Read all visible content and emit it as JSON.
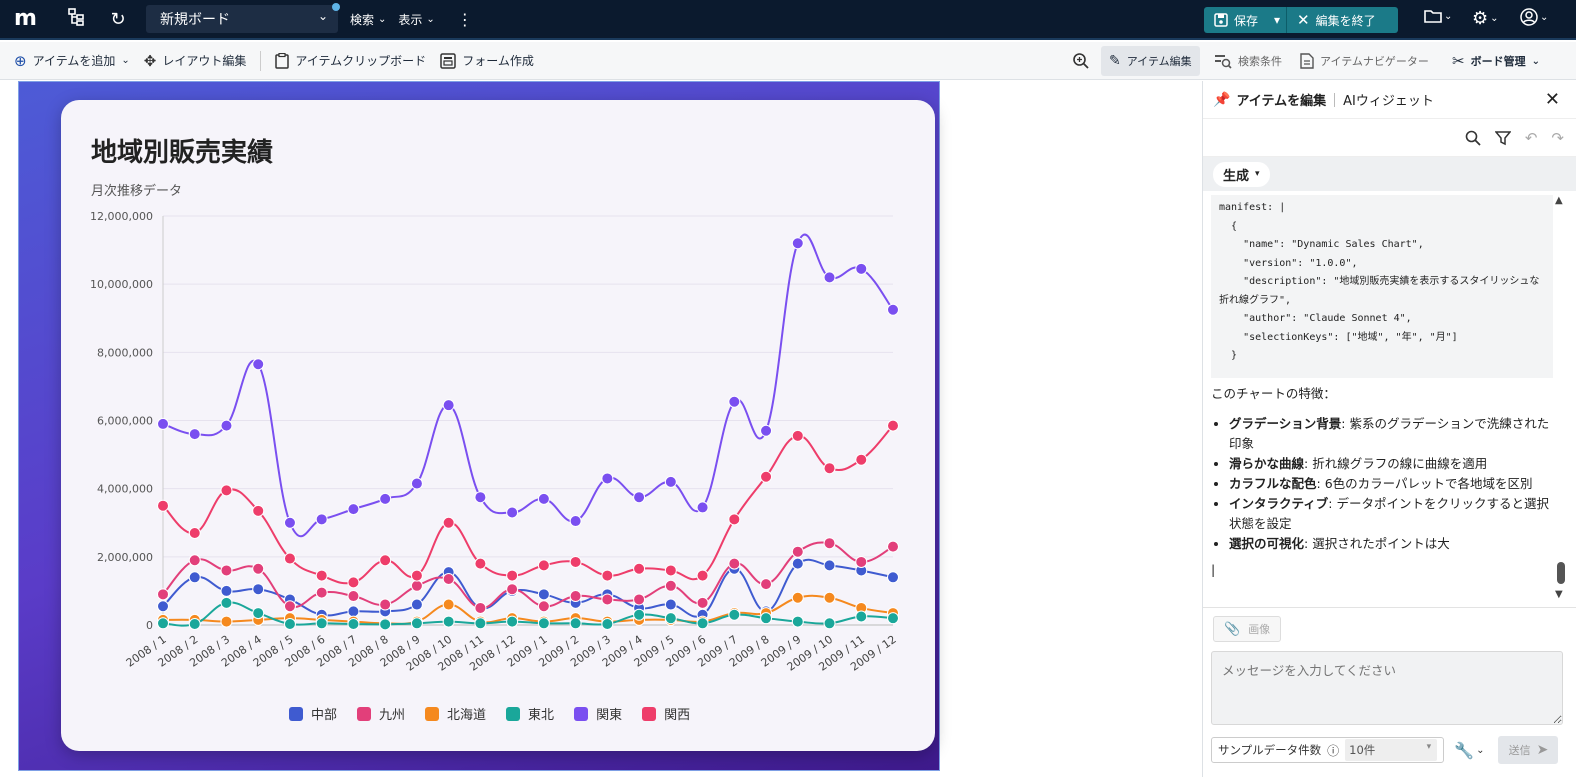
{
  "topbar": {
    "logo": "m",
    "board_name": "新規ボード",
    "menu_search": "検索",
    "menu_view": "表示",
    "save_label": "保存",
    "end_edit_label": "編集を終了"
  },
  "toolbar": {
    "add_item": "アイテムを追加",
    "layout_edit": "レイアウト編集",
    "item_clipboard": "アイテムクリップボード",
    "form_create": "フォーム作成",
    "item_edit": "アイテム編集",
    "search_conditions": "検索条件",
    "item_navigator": "アイテムナビゲーター",
    "board_manage": "ボード管理"
  },
  "card": {
    "title": "地域別販売実績",
    "subtitle": "月次推移データ"
  },
  "chart_data": {
    "type": "line",
    "title": "地域別販売実績",
    "subtitle": "月次推移データ",
    "xlabel": "",
    "ylabel": "",
    "ylim": [
      0,
      12000000
    ],
    "yticks": [
      "0",
      "2,000,000",
      "4,000,000",
      "6,000,000",
      "8,000,000",
      "10,000,000",
      "12,000,000"
    ],
    "grid": true,
    "legend_position": "bottom",
    "categories": [
      "2008 / 1",
      "2008 / 2",
      "2008 / 3",
      "2008 / 4",
      "2008 / 5",
      "2008 / 6",
      "2008 / 7",
      "2008 / 8",
      "2008 / 9",
      "2008 / 10",
      "2008 / 11",
      "2008 / 12",
      "2009 / 1",
      "2009 / 2",
      "2009 / 3",
      "2009 / 4",
      "2009 / 5",
      "2009 / 6",
      "2009 / 7",
      "2009 / 8",
      "2009 / 9",
      "2009 / 10",
      "2009 / 11",
      "2009 / 12"
    ],
    "series": [
      {
        "name": "中部",
        "color": "#3f5bd0",
        "values": [
          550000,
          1400000,
          1000000,
          1050000,
          750000,
          300000,
          400000,
          400000,
          600000,
          1550000,
          500000,
          1000000,
          900000,
          650000,
          900000,
          500000,
          600000,
          300000,
          1650000,
          400000,
          1800000,
          1750000,
          1600000,
          1400000
        ]
      },
      {
        "name": "九州",
        "color": "#e23f7a",
        "values": [
          900000,
          1900000,
          1600000,
          1650000,
          550000,
          950000,
          850000,
          600000,
          1150000,
          1350000,
          500000,
          1050000,
          550000,
          850000,
          750000,
          750000,
          1150000,
          650000,
          1800000,
          1200000,
          2150000,
          2400000,
          1850000,
          2300000
        ]
      },
      {
        "name": "北海道",
        "color": "#f5891e",
        "values": [
          150000,
          150000,
          100000,
          150000,
          200000,
          150000,
          100000,
          50000,
          100000,
          600000,
          100000,
          200000,
          100000,
          200000,
          100000,
          150000,
          150000,
          100000,
          350000,
          350000,
          800000,
          800000,
          500000,
          350000
        ]
      },
      {
        "name": "東北",
        "color": "#1aa79a",
        "values": [
          50000,
          30000,
          650000,
          350000,
          30000,
          50000,
          30000,
          20000,
          50000,
          100000,
          50000,
          100000,
          50000,
          50000,
          30000,
          300000,
          200000,
          50000,
          300000,
          200000,
          100000,
          50000,
          250000,
          200000
        ]
      },
      {
        "name": "関東",
        "color": "#7a4ff0",
        "values": [
          5900000,
          5600000,
          5850000,
          7650000,
          3000000,
          3100000,
          3400000,
          3700000,
          4150000,
          6450000,
          3750000,
          3300000,
          3700000,
          3050000,
          4300000,
          3750000,
          4200000,
          3450000,
          6550000,
          5700000,
          11200000,
          10200000,
          10450000,
          9250000
        ]
      },
      {
        "name": "関西",
        "color": "#ee3d6a",
        "values": [
          3500000,
          2700000,
          3950000,
          3350000,
          1950000,
          1450000,
          1250000,
          1900000,
          1450000,
          3000000,
          1800000,
          1450000,
          1750000,
          1850000,
          1450000,
          1650000,
          1600000,
          1450000,
          3100000,
          4350000,
          5550000,
          4600000,
          4850000,
          5850000
        ]
      }
    ]
  },
  "panel": {
    "tab_edit": "アイテムを編集",
    "tab_ai": "AIウィジェット",
    "generate_label": "生成",
    "code": "manifest: |\n  {\n    \"name\": \"Dynamic Sales Chart\",\n    \"version\": \"1.0.0\",\n    \"description\": \"地域別販売実績を表示するスタイリッシュな折れ線グラフ\",\n    \"author\": \"Claude Sonnet 4\",\n    \"selectionKeys\": [\"地域\", \"年\", \"月\"]\n  }",
    "features_intro": "このチャートの特徴：",
    "features": [
      {
        "title": "グラデーション背景",
        "text": ": 紫系のグラデーションで洗練された印象"
      },
      {
        "title": "滑らかな曲線",
        "text": ": 折れ線グラフの線に曲線を適用"
      },
      {
        "title": "カラフルな配色",
        "text": ": 6色のカラーパレットで各地域を区別"
      },
      {
        "title": "インタラクティブ",
        "text": ": データポイントをクリックすると選択状態を設定"
      },
      {
        "title": "選択の可視化",
        "text": ": 選択されたポイントは大"
      }
    ],
    "image_button": "画像",
    "message_placeholder": "メッセージを入力してください",
    "sample_label": "サンプルデータ件数",
    "sample_value": "10件",
    "send_label": "送信"
  }
}
